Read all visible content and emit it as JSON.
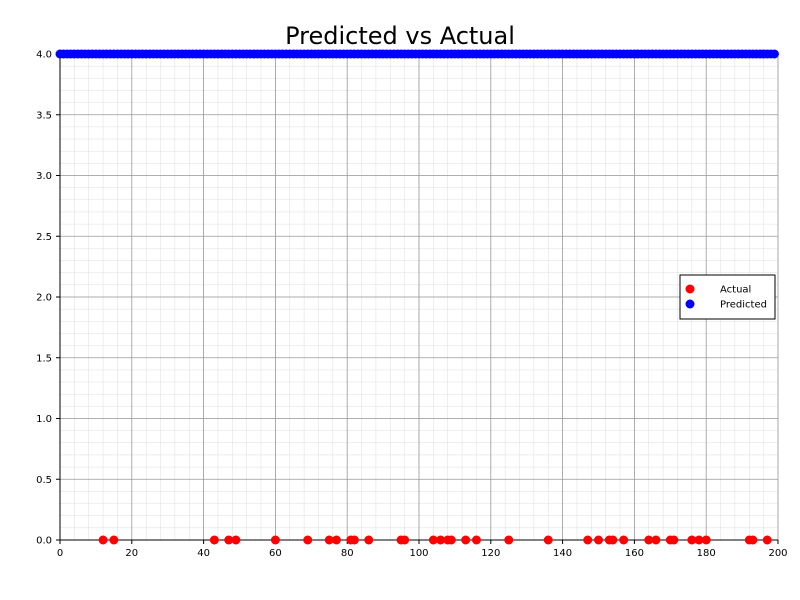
{
  "chart_data": {
    "type": "scatter",
    "title": "Predicted vs Actual",
    "xlabel": "",
    "ylabel": "",
    "xlim": [
      0,
      200
    ],
    "ylim": [
      0,
      4.0
    ],
    "x_ticks": [
      0,
      20,
      40,
      60,
      80,
      100,
      120,
      140,
      160,
      180,
      200
    ],
    "x_tick_labels": [
      "0",
      "20",
      "40",
      "60",
      "80",
      "100",
      "120",
      "140",
      "160",
      "180",
      "200"
    ],
    "y_ticks": [
      0,
      0.5,
      1.0,
      1.5,
      2.0,
      2.5,
      3.0,
      3.5,
      4.0
    ],
    "y_tick_labels": [
      "0.0",
      "0.5",
      "1.0",
      "1.5",
      "2.0",
      "2.5",
      "3.0",
      "3.5",
      "4.0"
    ],
    "grid": {
      "major": true,
      "minor": true
    },
    "legend_position": "right",
    "series": [
      {
        "name": "Actual",
        "color": "#ff0000",
        "x": [
          12,
          15,
          43,
          47,
          49,
          60,
          69,
          75,
          77,
          81,
          82,
          86,
          95,
          96,
          104,
          106,
          108,
          109,
          113,
          116,
          125,
          136,
          147,
          150,
          153,
          154,
          157,
          164,
          166,
          170,
          171,
          176,
          178,
          180,
          192,
          193,
          197
        ],
        "y": [
          0,
          0,
          0,
          0,
          0,
          0,
          0,
          0,
          0,
          0,
          0,
          0,
          0,
          0,
          0,
          0,
          0,
          0,
          0,
          0,
          0,
          0,
          0,
          0,
          0,
          0,
          0,
          0,
          0,
          0,
          0,
          0,
          0,
          0,
          0,
          0,
          0
        ]
      },
      {
        "name": "Predicted",
        "color": "#0000ff",
        "x_start": 0,
        "x_end": 199,
        "x_step": 1,
        "y_value": 4.0
      }
    ]
  }
}
